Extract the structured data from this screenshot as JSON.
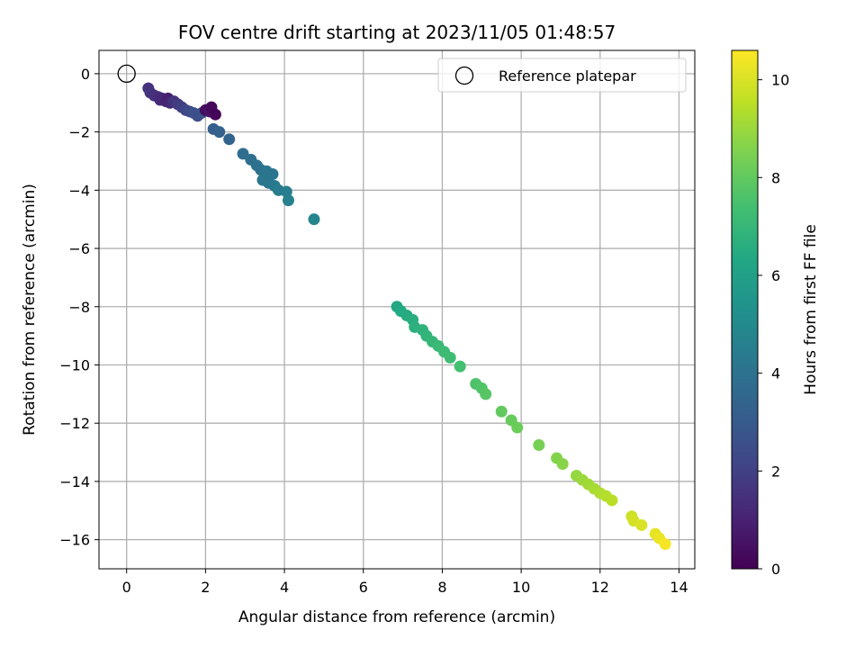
{
  "chart_data": {
    "type": "scatter",
    "title": "FOV centre drift starting at 2023/11/05 01:48:57",
    "xlabel": "Angular distance from reference (arcmin)",
    "ylabel": "Rotation from reference (arcmin)",
    "xlim": [
      -0.7,
      14.4
    ],
    "ylim": [
      -17,
      0.8
    ],
    "xticks": [
      0,
      2,
      4,
      6,
      8,
      10,
      12,
      14
    ],
    "yticks": [
      0,
      -2,
      -4,
      -6,
      -8,
      -10,
      -12,
      -14,
      -16
    ],
    "grid": true,
    "legend": {
      "position": "top-right",
      "entries": [
        "Reference platepar"
      ]
    },
    "reference_point": {
      "x": 0,
      "y": 0
    },
    "colorbar": {
      "label": "Hours from first FF file",
      "colormap": "viridis",
      "range": [
        0,
        10.6
      ],
      "ticks": [
        0,
        2,
        4,
        6,
        8,
        10
      ]
    },
    "points": [
      {
        "x": 0.55,
        "y": -0.5,
        "c": 1.5
      },
      {
        "x": 0.6,
        "y": -0.65,
        "c": 1.6
      },
      {
        "x": 0.7,
        "y": -0.75,
        "c": 1.5
      },
      {
        "x": 0.8,
        "y": -0.8,
        "c": 1.4
      },
      {
        "x": 0.85,
        "y": -0.9,
        "c": 1.3
      },
      {
        "x": 0.9,
        "y": -0.85,
        "c": 1.2
      },
      {
        "x": 1.0,
        "y": -0.95,
        "c": 1.1
      },
      {
        "x": 1.05,
        "y": -0.85,
        "c": 0.9
      },
      {
        "x": 1.1,
        "y": -1.0,
        "c": 1.2
      },
      {
        "x": 1.2,
        "y": -0.95,
        "c": 1.6
      },
      {
        "x": 1.3,
        "y": -1.05,
        "c": 1.8
      },
      {
        "x": 1.4,
        "y": -1.15,
        "c": 2.0
      },
      {
        "x": 1.5,
        "y": -1.25,
        "c": 2.2
      },
      {
        "x": 1.6,
        "y": -1.3,
        "c": 2.4
      },
      {
        "x": 1.7,
        "y": -1.35,
        "c": 2.6
      },
      {
        "x": 1.8,
        "y": -1.45,
        "c": 2.5
      },
      {
        "x": 1.9,
        "y": -1.35,
        "c": 2.7
      },
      {
        "x": 2.0,
        "y": -1.25,
        "c": 0.3
      },
      {
        "x": 2.1,
        "y": -1.3,
        "c": 0.5
      },
      {
        "x": 2.15,
        "y": -1.15,
        "c": 0.2
      },
      {
        "x": 2.25,
        "y": -1.4,
        "c": 0.1
      },
      {
        "x": 2.2,
        "y": -1.9,
        "c": 3.2
      },
      {
        "x": 2.35,
        "y": -2.0,
        "c": 3.3
      },
      {
        "x": 2.6,
        "y": -2.25,
        "c": 3.4
      },
      {
        "x": 2.95,
        "y": -2.75,
        "c": 3.8
      },
      {
        "x": 3.15,
        "y": -2.95,
        "c": 3.9
      },
      {
        "x": 3.3,
        "y": -3.15,
        "c": 4.0
      },
      {
        "x": 3.4,
        "y": -3.3,
        "c": 4.0
      },
      {
        "x": 3.55,
        "y": -3.35,
        "c": 4.1
      },
      {
        "x": 3.7,
        "y": -3.45,
        "c": 4.1
      },
      {
        "x": 3.45,
        "y": -3.65,
        "c": 4.2
      },
      {
        "x": 3.6,
        "y": -3.75,
        "c": 4.2
      },
      {
        "x": 3.75,
        "y": -3.85,
        "c": 4.3
      },
      {
        "x": 3.85,
        "y": -4.0,
        "c": 4.4
      },
      {
        "x": 4.05,
        "y": -4.05,
        "c": 4.5
      },
      {
        "x": 4.1,
        "y": -4.35,
        "c": 4.6
      },
      {
        "x": 4.75,
        "y": -5.0,
        "c": 4.8
      },
      {
        "x": 6.85,
        "y": -8.0,
        "c": 6.3
      },
      {
        "x": 6.95,
        "y": -8.15,
        "c": 6.4
      },
      {
        "x": 7.1,
        "y": -8.3,
        "c": 6.5
      },
      {
        "x": 7.25,
        "y": -8.45,
        "c": 6.6
      },
      {
        "x": 7.3,
        "y": -8.7,
        "c": 6.7
      },
      {
        "x": 7.5,
        "y": -8.8,
        "c": 6.8
      },
      {
        "x": 7.6,
        "y": -9.0,
        "c": 6.9
      },
      {
        "x": 7.75,
        "y": -9.2,
        "c": 7.0
      },
      {
        "x": 7.9,
        "y": -9.35,
        "c": 7.1
      },
      {
        "x": 8.05,
        "y": -9.55,
        "c": 7.2
      },
      {
        "x": 8.2,
        "y": -9.75,
        "c": 7.3
      },
      {
        "x": 8.45,
        "y": -10.05,
        "c": 7.4
      },
      {
        "x": 8.85,
        "y": -10.65,
        "c": 7.6
      },
      {
        "x": 9.0,
        "y": -10.8,
        "c": 7.7
      },
      {
        "x": 9.1,
        "y": -11.0,
        "c": 7.8
      },
      {
        "x": 9.5,
        "y": -11.6,
        "c": 8.0
      },
      {
        "x": 9.75,
        "y": -11.9,
        "c": 8.1
      },
      {
        "x": 9.9,
        "y": -12.15,
        "c": 8.2
      },
      {
        "x": 10.45,
        "y": -12.75,
        "c": 8.4
      },
      {
        "x": 10.9,
        "y": -13.2,
        "c": 8.6
      },
      {
        "x": 11.05,
        "y": -13.4,
        "c": 8.7
      },
      {
        "x": 11.4,
        "y": -13.8,
        "c": 8.9
      },
      {
        "x": 11.55,
        "y": -13.95,
        "c": 9.0
      },
      {
        "x": 11.7,
        "y": -14.1,
        "c": 9.1
      },
      {
        "x": 11.85,
        "y": -14.25,
        "c": 9.2
      },
      {
        "x": 12.0,
        "y": -14.4,
        "c": 9.3
      },
      {
        "x": 12.15,
        "y": -14.5,
        "c": 9.4
      },
      {
        "x": 12.3,
        "y": -14.65,
        "c": 9.5
      },
      {
        "x": 12.8,
        "y": -15.2,
        "c": 9.8
      },
      {
        "x": 12.85,
        "y": -15.35,
        "c": 9.9
      },
      {
        "x": 13.05,
        "y": -15.5,
        "c": 10.0
      },
      {
        "x": 13.4,
        "y": -15.8,
        "c": 10.2
      },
      {
        "x": 13.5,
        "y": -15.95,
        "c": 10.3
      },
      {
        "x": 13.65,
        "y": -16.15,
        "c": 10.5
      }
    ]
  },
  "colors": {
    "reference_edge": "#000000",
    "grid": "#b0b0b0",
    "axes": "#000000",
    "legend_border": "#cccccc"
  }
}
